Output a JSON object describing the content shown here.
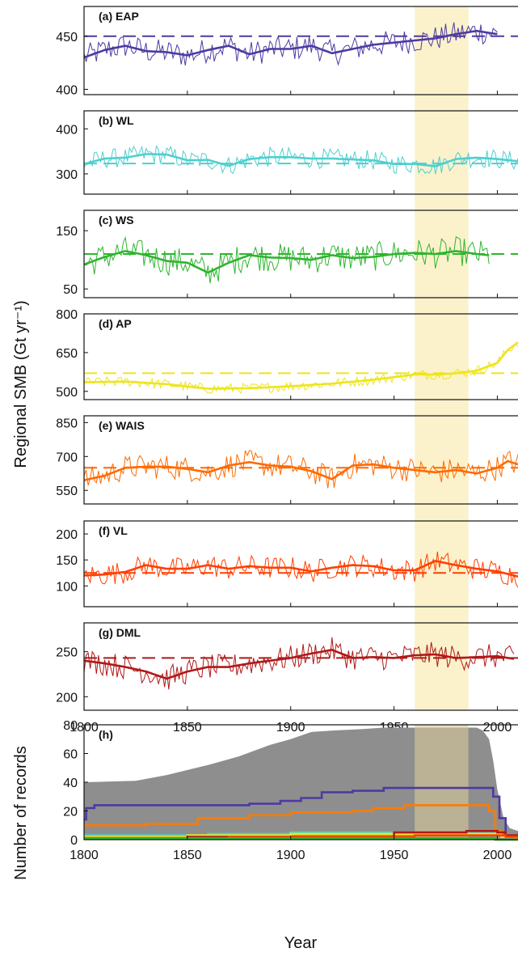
{
  "chart_data": {
    "type": "line",
    "ylabel": "Regional SMB (Gt yr⁻¹)",
    "xlabel": "Year",
    "xlim": [
      1800,
      2010
    ],
    "xticks": [
      1800,
      1850,
      1900,
      1950,
      2000
    ],
    "highlight_period": [
      1960,
      1986
    ],
    "highlight_color": "#fbf2cc",
    "panels": [
      {
        "label": "(a) EAP",
        "color": "#4e3aa2",
        "mean": 450,
        "ylim": [
          395,
          478
        ],
        "yticks": [
          400,
          450
        ],
        "annual_end": 2000,
        "smooth": [
          [
            1800,
            430
          ],
          [
            1810,
            437
          ],
          [
            1820,
            441
          ],
          [
            1830,
            436
          ],
          [
            1840,
            435
          ],
          [
            1850,
            432
          ],
          [
            1860,
            437
          ],
          [
            1870,
            441
          ],
          [
            1880,
            433
          ],
          [
            1890,
            438
          ],
          [
            1900,
            438
          ],
          [
            1910,
            441
          ],
          [
            1920,
            434
          ],
          [
            1930,
            438
          ],
          [
            1940,
            442
          ],
          [
            1950,
            444
          ],
          [
            1960,
            446
          ],
          [
            1970,
            448
          ],
          [
            1980,
            452
          ],
          [
            1990,
            455
          ],
          [
            2000,
            452
          ]
        ],
        "amp": 12
      },
      {
        "label": "(b) WL",
        "color": "#4fcfcf",
        "mean": 323,
        "ylim": [
          255,
          440
        ],
        "yticks": [
          300,
          400
        ],
        "annual_end": 2010,
        "smooth": [
          [
            1800,
            322
          ],
          [
            1810,
            334
          ],
          [
            1820,
            336
          ],
          [
            1830,
            344
          ],
          [
            1840,
            343
          ],
          [
            1850,
            330
          ],
          [
            1860,
            331
          ],
          [
            1870,
            318
          ],
          [
            1880,
            333
          ],
          [
            1890,
            337
          ],
          [
            1900,
            337
          ],
          [
            1910,
            334
          ],
          [
            1920,
            334
          ],
          [
            1930,
            332
          ],
          [
            1940,
            330
          ],
          [
            1950,
            322
          ],
          [
            1960,
            322
          ],
          [
            1970,
            317
          ],
          [
            1980,
            333
          ],
          [
            1990,
            336
          ],
          [
            2000,
            333
          ],
          [
            2010,
            328
          ]
        ],
        "amp": 22
      },
      {
        "label": "(c) WS",
        "color": "#2eb52e",
        "mean": 110,
        "ylim": [
          35,
          185
        ],
        "yticks": [
          50,
          150
        ],
        "annual_end": 1996,
        "smooth": [
          [
            1800,
            92
          ],
          [
            1810,
            105
          ],
          [
            1820,
            115
          ],
          [
            1830,
            108
          ],
          [
            1840,
            98
          ],
          [
            1850,
            95
          ],
          [
            1860,
            78
          ],
          [
            1870,
            95
          ],
          [
            1880,
            108
          ],
          [
            1890,
            104
          ],
          [
            1900,
            103
          ],
          [
            1910,
            100
          ],
          [
            1920,
            108
          ],
          [
            1930,
            103
          ],
          [
            1940,
            105
          ],
          [
            1950,
            110
          ],
          [
            1960,
            112
          ],
          [
            1970,
            110
          ],
          [
            1980,
            115
          ],
          [
            1990,
            110
          ],
          [
            1996,
            108
          ]
        ],
        "amp": 25
      },
      {
        "label": "(d) AP",
        "color": "#ede51d",
        "mean": 570,
        "ylim": [
          468,
          800
        ],
        "yticks": [
          500,
          650,
          800
        ],
        "annual_end": 2010,
        "smooth": [
          [
            1800,
            535
          ],
          [
            1820,
            538
          ],
          [
            1840,
            528
          ],
          [
            1860,
            510
          ],
          [
            1880,
            512
          ],
          [
            1900,
            520
          ],
          [
            1920,
            530
          ],
          [
            1940,
            545
          ],
          [
            1950,
            555
          ],
          [
            1960,
            565
          ],
          [
            1970,
            565
          ],
          [
            1980,
            570
          ],
          [
            1990,
            580
          ],
          [
            2000,
            610
          ],
          [
            2005,
            660
          ],
          [
            2010,
            690
          ]
        ],
        "amp": 20
      },
      {
        "label": "(e) WAIS",
        "color": "#ff6a00",
        "mean": 650,
        "ylim": [
          490,
          880
        ],
        "yticks": [
          550,
          700,
          850
        ],
        "annual_end": 2010,
        "smooth": [
          [
            1800,
            595
          ],
          [
            1810,
            615
          ],
          [
            1820,
            650
          ],
          [
            1830,
            655
          ],
          [
            1840,
            655
          ],
          [
            1850,
            645
          ],
          [
            1860,
            630
          ],
          [
            1870,
            660
          ],
          [
            1880,
            675
          ],
          [
            1890,
            660
          ],
          [
            1900,
            655
          ],
          [
            1910,
            635
          ],
          [
            1920,
            600
          ],
          [
            1930,
            660
          ],
          [
            1940,
            665
          ],
          [
            1950,
            650
          ],
          [
            1960,
            640
          ],
          [
            1970,
            630
          ],
          [
            1980,
            640
          ],
          [
            1990,
            625
          ],
          [
            2000,
            650
          ],
          [
            2005,
            680
          ],
          [
            2010,
            665
          ]
        ],
        "amp": 55
      },
      {
        "label": "(f) VL",
        "color": "#ff3f00",
        "mean": 125,
        "ylim": [
          60,
          225
        ],
        "yticks": [
          100,
          150,
          200
        ],
        "annual_end": 2010,
        "smooth": [
          [
            1800,
            120
          ],
          [
            1810,
            122
          ],
          [
            1820,
            127
          ],
          [
            1830,
            140
          ],
          [
            1840,
            133
          ],
          [
            1850,
            133
          ],
          [
            1860,
            140
          ],
          [
            1870,
            133
          ],
          [
            1880,
            138
          ],
          [
            1890,
            135
          ],
          [
            1900,
            135
          ],
          [
            1910,
            128
          ],
          [
            1920,
            135
          ],
          [
            1930,
            140
          ],
          [
            1940,
            138
          ],
          [
            1950,
            130
          ],
          [
            1960,
            130
          ],
          [
            1970,
            148
          ],
          [
            1980,
            140
          ],
          [
            1990,
            133
          ],
          [
            2000,
            128
          ],
          [
            2010,
            118
          ]
        ],
        "amp": 22
      },
      {
        "label": "(g) DML",
        "color": "#b01818",
        "mean": 243,
        "ylim": [
          185,
          282
        ],
        "yticks": [
          200,
          250
        ],
        "annual_end": 2008,
        "smooth": [
          [
            1800,
            240
          ],
          [
            1810,
            237
          ],
          [
            1820,
            233
          ],
          [
            1830,
            228
          ],
          [
            1840,
            220
          ],
          [
            1850,
            228
          ],
          [
            1860,
            233
          ],
          [
            1870,
            233
          ],
          [
            1880,
            237
          ],
          [
            1890,
            240
          ],
          [
            1900,
            243
          ],
          [
            1910,
            248
          ],
          [
            1920,
            252
          ],
          [
            1930,
            243
          ],
          [
            1940,
            244
          ],
          [
            1950,
            243
          ],
          [
            1960,
            246
          ],
          [
            1970,
            247
          ],
          [
            1980,
            243
          ],
          [
            1990,
            244
          ],
          [
            2000,
            245
          ],
          [
            2008,
            242
          ]
        ],
        "amp": 14
      }
    ],
    "records": {
      "label": "(h)",
      "ylabel": "Number of records",
      "ylim": [
        0,
        80
      ],
      "yticks": [
        0,
        20,
        40,
        60,
        80
      ],
      "total_color": "#8e8e8e",
      "total": [
        [
          1800,
          40
        ],
        [
          1825,
          41
        ],
        [
          1840,
          45
        ],
        [
          1860,
          52
        ],
        [
          1875,
          58
        ],
        [
          1890,
          66
        ],
        [
          1900,
          70
        ],
        [
          1910,
          75
        ],
        [
          1920,
          76
        ],
        [
          1935,
          77
        ],
        [
          1945,
          78
        ],
        [
          1990,
          78
        ],
        [
          1993,
          76
        ],
        [
          1996,
          70
        ],
        [
          1998,
          55
        ],
        [
          2000,
          35
        ],
        [
          2003,
          15
        ],
        [
          2006,
          8
        ],
        [
          2010,
          6
        ]
      ],
      "series": [
        {
          "color": "#4e3aa2",
          "steps": [
            [
              1800,
              14
            ],
            [
              1801,
              22
            ],
            [
              1805,
              24
            ],
            [
              1875,
              24
            ],
            [
              1880,
              25
            ],
            [
              1895,
              27
            ],
            [
              1905,
              29
            ],
            [
              1915,
              33
            ],
            [
              1930,
              34
            ],
            [
              1945,
              36
            ],
            [
              1995,
              36
            ],
            [
              1998,
              30
            ],
            [
              2001,
              15
            ],
            [
              2004,
              2
            ],
            [
              2008,
              1
            ]
          ]
        },
        {
          "color": "#ff7a00",
          "steps": [
            [
              1800,
              10
            ],
            [
              1830,
              11
            ],
            [
              1855,
              15
            ],
            [
              1880,
              17
            ],
            [
              1900,
              19
            ],
            [
              1930,
              20
            ],
            [
              1940,
              22
            ],
            [
              1955,
              24
            ],
            [
              1993,
              24
            ],
            [
              1996,
              20
            ],
            [
              1999,
              6
            ],
            [
              2002,
              2
            ],
            [
              2008,
              1
            ]
          ]
        },
        {
          "color": "#4fcfcf",
          "steps": [
            [
              1800,
              3
            ],
            [
              1860,
              4
            ],
            [
              1900,
              5
            ],
            [
              1998,
              5
            ],
            [
              2002,
              2
            ],
            [
              2010,
              2
            ]
          ]
        },
        {
          "color": "#ede51d",
          "steps": [
            [
              1800,
              2
            ],
            [
              1850,
              3
            ],
            [
              1900,
              4
            ],
            [
              1998,
              4
            ],
            [
              2002,
              2
            ],
            [
              2010,
              2
            ]
          ]
        },
        {
          "color": "#b01818",
          "steps": [
            [
              1800,
              1
            ],
            [
              1850,
              2
            ],
            [
              1900,
              2
            ],
            [
              1950,
              5
            ],
            [
              1985,
              6
            ],
            [
              2000,
              5
            ],
            [
              2004,
              3
            ],
            [
              2010,
              3
            ]
          ]
        },
        {
          "color": "#ff3f00",
          "steps": [
            [
              1800,
              1
            ],
            [
              1870,
              2
            ],
            [
              1960,
              3
            ],
            [
              2000,
              3
            ],
            [
              2004,
              2
            ],
            [
              2010,
              2
            ]
          ]
        },
        {
          "color": "#2eb52e",
          "steps": [
            [
              1800,
              1
            ],
            [
              1997,
              1
            ],
            [
              1999,
              0
            ],
            [
              2010,
              0
            ]
          ]
        }
      ]
    }
  }
}
